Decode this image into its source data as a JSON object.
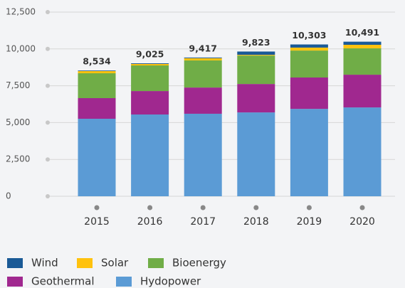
{
  "chart_data": {
    "type": "stacked-bar",
    "categories": [
      "2015",
      "2016",
      "2017",
      "2018",
      "2019",
      "2020"
    ],
    "series": [
      {
        "name": "Wind",
        "color": "#1a5a96",
        "values": [
          40,
          45,
          47,
          223,
          213,
          211
        ]
      },
      {
        "name": "Solar",
        "color": "#ffc20e",
        "values": [
          144,
          100,
          150,
          50,
          200,
          240
        ]
      },
      {
        "name": "Bioenergy",
        "color": "#70ad47",
        "values": [
          1690,
          1740,
          1840,
          1930,
          1830,
          1790
        ]
      },
      {
        "name": "Geothermal",
        "color": "#a0288f",
        "values": [
          1400,
          1590,
          1780,
          1930,
          2130,
          2220
        ]
      },
      {
        "name": "Hydopower",
        "color": "#5b9bd5",
        "values": [
          5260,
          5550,
          5600,
          5690,
          5930,
          6030
        ]
      }
    ],
    "totals": [
      8534,
      9025,
      9417,
      9823,
      10303,
      10491
    ],
    "total_labels": [
      "8,534",
      "9,025",
      "9,417",
      "9,823",
      "10,303",
      "10,491"
    ],
    "ylim": [
      0,
      12500
    ],
    "yticks": [
      0,
      {
        "value": 2500,
        "label": "2,500"
      },
      {
        "value": 5000,
        "label": "5,000"
      },
      {
        "value": 7500,
        "label": "7,500"
      },
      {
        "value": 10000,
        "label": "10,000"
      },
      {
        "value": 12500,
        "label": "12,500"
      }
    ],
    "grid": true
  }
}
